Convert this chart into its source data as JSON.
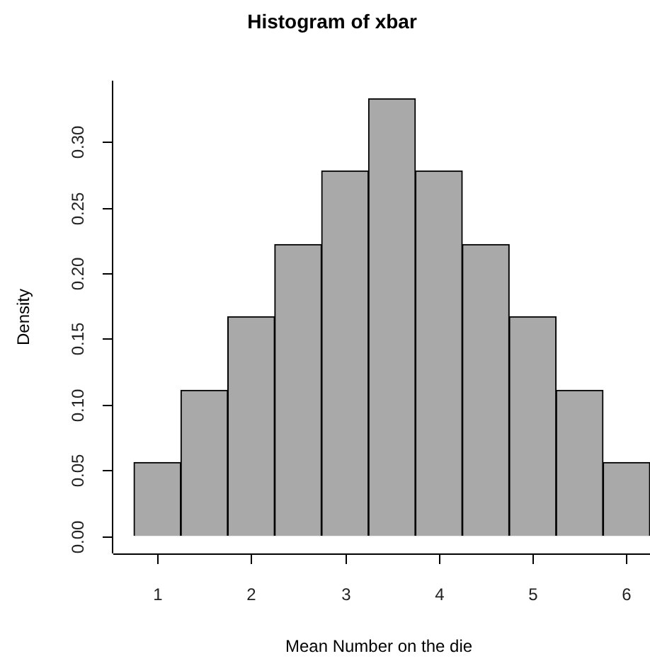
{
  "chart_data": {
    "type": "histogram",
    "title": "Histogram of xbar",
    "xlabel": "Mean Number on the die",
    "ylabel": "Density",
    "bins": [
      0.75,
      1.25,
      1.75,
      2.25,
      2.75,
      3.25,
      3.75,
      4.25,
      4.75,
      5.25,
      5.75,
      6.25
    ],
    "values": [
      0.056,
      0.111,
      0.167,
      0.222,
      0.278,
      0.333,
      0.278,
      0.222,
      0.167,
      0.111,
      0.056
    ],
    "color": "#a9a9a9",
    "xlim": [
      0.53,
      6.25
    ],
    "ylim": [
      -0.0133,
      0.3467
    ],
    "xticks": [
      1,
      2,
      3,
      4,
      5,
      6
    ],
    "yticks": [
      {
        "value": 0,
        "label": "0.00"
      },
      {
        "value": 0.05,
        "label": "0.05"
      },
      {
        "value": 0.1,
        "label": "0.10"
      },
      {
        "value": 0.15,
        "label": "0.15"
      },
      {
        "value": 0.2,
        "label": "0.20"
      },
      {
        "value": 0.25,
        "label": "0.25"
      },
      {
        "value": 0.3,
        "label": "0.30"
      }
    ],
    "grid": false,
    "legend": false
  }
}
